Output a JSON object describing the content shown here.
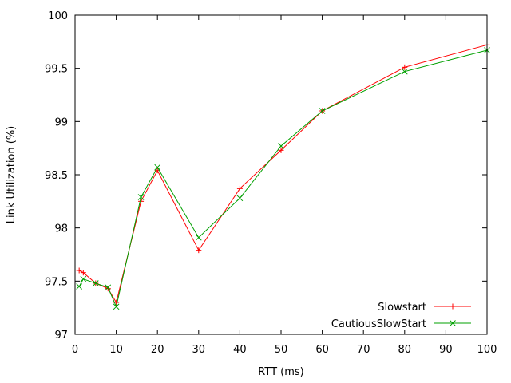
{
  "chart_data": {
    "type": "line",
    "xlabel": "RTT (ms)",
    "ylabel": "Link Utilization (%)",
    "xlim": [
      0,
      100
    ],
    "ylim": [
      97,
      100
    ],
    "xticks": [
      0,
      10,
      20,
      30,
      40,
      50,
      60,
      70,
      80,
      90,
      100
    ],
    "yticks": [
      97,
      97.5,
      98,
      98.5,
      99,
      99.5,
      100
    ],
    "ytick_labels": [
      "97",
      "97.5",
      "98",
      "98.5",
      "99",
      "99.5",
      "100"
    ],
    "grid": false,
    "legend_position": "bottom-right",
    "series": [
      {
        "name": "Slowstart",
        "color": "#ff0000",
        "marker": "plus",
        "x": [
          1,
          2,
          5,
          8,
          10,
          16,
          20,
          30,
          40,
          50,
          60,
          80,
          100
        ],
        "y": [
          97.6,
          97.58,
          97.48,
          97.43,
          97.3,
          98.25,
          98.54,
          97.79,
          98.37,
          98.73,
          99.1,
          99.51,
          99.72
        ]
      },
      {
        "name": "CautiousSlowStart",
        "color": "#00a000",
        "marker": "cross",
        "x": [
          1,
          2,
          5,
          8,
          10,
          16,
          20,
          30,
          40,
          50,
          60,
          80,
          100
        ],
        "y": [
          97.45,
          97.52,
          97.48,
          97.44,
          97.26,
          98.29,
          98.57,
          97.91,
          98.28,
          98.77,
          99.1,
          99.47,
          99.67
        ]
      }
    ]
  }
}
